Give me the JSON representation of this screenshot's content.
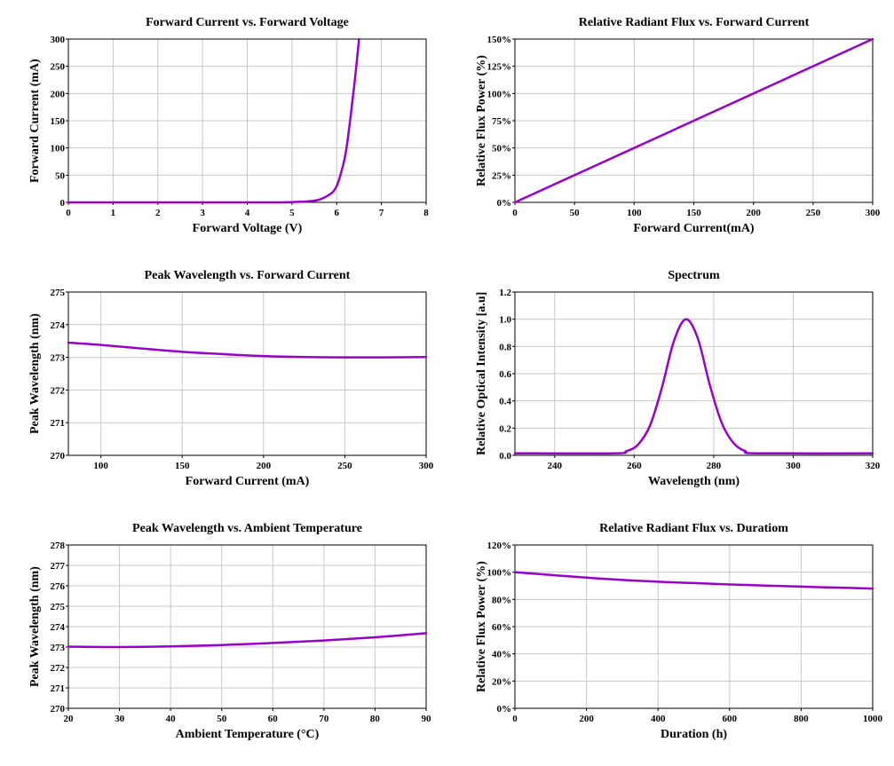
{
  "colors": {
    "curve": "#9900cc",
    "grid": "#c8c8c8",
    "axis": "#000000"
  },
  "chart_data": [
    {
      "type": "line",
      "title": "Forward Current vs. Forward Voltage",
      "xlabel": "Forward Voltage (V)",
      "ylabel": "Forward Current (mA)",
      "xlim": [
        0,
        8
      ],
      "ylim": [
        0,
        300
      ],
      "xticks": [
        "0",
        "1",
        "2",
        "3",
        "4",
        "5",
        "6",
        "7",
        "8"
      ],
      "yticks": [
        "0",
        "50",
        "100",
        "150",
        "200",
        "250",
        "300"
      ],
      "grid": true,
      "x": [
        0,
        1,
        2,
        3,
        4,
        5.0,
        5.5,
        5.7,
        5.9,
        6.0,
        6.1,
        6.2,
        6.3,
        6.4,
        6.5
      ],
      "y": [
        0,
        0,
        0,
        0,
        0,
        0.5,
        3,
        8,
        18,
        30,
        55,
        90,
        150,
        220,
        300
      ]
    },
    {
      "type": "line",
      "title": "Relative Radiant Flux vs. Forward Current",
      "xlabel": "Forward Current(mA)",
      "ylabel": "Relative Flux Power (%)",
      "xlim": [
        0,
        300
      ],
      "ylim": [
        0,
        150
      ],
      "xticks": [
        "0",
        "50",
        "100",
        "150",
        "200",
        "250",
        "300"
      ],
      "yticks": [
        "0%",
        "25%",
        "50%",
        "75%",
        "100%",
        "125%",
        "150%"
      ],
      "grid": true,
      "x": [
        0,
        300
      ],
      "y": [
        0,
        150
      ]
    },
    {
      "type": "line",
      "title": "Peak Wavelength vs. Forward Current",
      "xlabel": "Forward Current (mA)",
      "ylabel": "Peak Wavelength (nm)",
      "xlim": [
        80,
        300
      ],
      "ylim": [
        270,
        275
      ],
      "xticks": [
        "100",
        "150",
        "200",
        "250",
        "300"
      ],
      "xtick_values": [
        100,
        150,
        200,
        250,
        300
      ],
      "yticks": [
        "270",
        "271",
        "272",
        "273",
        "274",
        "275"
      ],
      "grid": true,
      "x": [
        80,
        100,
        125,
        150,
        175,
        200,
        225,
        250,
        275,
        300
      ],
      "y": [
        273.45,
        273.38,
        273.27,
        273.17,
        273.1,
        273.04,
        273.01,
        273.0,
        273.0,
        273.01
      ]
    },
    {
      "type": "line",
      "title": "Spectrum",
      "xlabel": "Wavelength (nm)",
      "ylabel": "Relative Optical Intensity [a.u]",
      "xlim": [
        230,
        320
      ],
      "ylim": [
        0,
        1.2
      ],
      "xticks": [
        "240",
        "260",
        "280",
        "300",
        "320"
      ],
      "xtick_values": [
        240,
        260,
        280,
        300,
        320
      ],
      "yticks": [
        "0.0",
        "0.2",
        "0.4",
        "0.6",
        "0.8",
        "1.0",
        "1.2"
      ],
      "grid": true,
      "x": [
        230,
        255,
        258,
        261,
        264,
        267,
        270,
        273,
        276,
        279,
        282,
        285,
        288,
        291,
        320
      ],
      "y": [
        0.015,
        0.015,
        0.03,
        0.08,
        0.22,
        0.5,
        0.84,
        1.0,
        0.86,
        0.52,
        0.24,
        0.09,
        0.03,
        0.015,
        0.015
      ]
    },
    {
      "type": "line",
      "title": "Peak Wavelength vs. Ambient Temperature",
      "xlabel": "Ambient Temperature (°C)",
      "ylabel": "Peak Wavelength (nm)",
      "xlim": [
        20,
        90
      ],
      "ylim": [
        270,
        278
      ],
      "xticks": [
        "20",
        "30",
        "40",
        "50",
        "60",
        "70",
        "80",
        "90"
      ],
      "yticks": [
        "270",
        "271",
        "272",
        "273",
        "274",
        "275",
        "276",
        "277",
        "278"
      ],
      "grid": true,
      "x": [
        20,
        30,
        40,
        50,
        60,
        70,
        80,
        90
      ],
      "y": [
        273.02,
        273.0,
        273.03,
        273.1,
        273.2,
        273.32,
        273.48,
        273.68
      ]
    },
    {
      "type": "line",
      "title": "Relative Radiant Flux vs. Duratiom",
      "xlabel": "Duration (h)",
      "ylabel": "Relative Flux Power (%)",
      "xlim": [
        0,
        1000
      ],
      "ylim": [
        0,
        120
      ],
      "xticks": [
        "0",
        "200",
        "400",
        "600",
        "800",
        "1000"
      ],
      "yticks": [
        "0%",
        "20%",
        "40%",
        "60%",
        "80%",
        "100%",
        "120%"
      ],
      "grid": true,
      "x": [
        0,
        100,
        200,
        300,
        400,
        500,
        600,
        700,
        800,
        900,
        1000
      ],
      "y": [
        100,
        98,
        96,
        94.3,
        93,
        92,
        91,
        90.2,
        89.4,
        88.7,
        88
      ]
    }
  ]
}
